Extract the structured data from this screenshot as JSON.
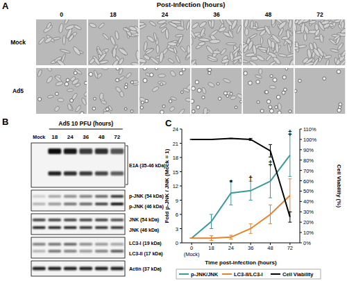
{
  "panels": {
    "A": {
      "label": "A",
      "title": "Post-Infection (hours)",
      "columns": [
        "0",
        "18",
        "24",
        "36",
        "48",
        "72"
      ],
      "rows": [
        "Mock",
        "Ad5"
      ]
    },
    "B": {
      "label": "B",
      "title": "Ad5 10 PFU (hours)",
      "lanes": [
        "Mock",
        "18",
        "24",
        "36",
        "48",
        "72"
      ],
      "blots": [
        {
          "labels": [
            "E1A (35-46 kDa)"
          ]
        },
        {
          "labels": [
            "p-JNK (54 kDa)",
            "p-JNK (46 kDa)"
          ]
        },
        {
          "labels": [
            "JNK (54 kDa)",
            "JNK (46 kDa)"
          ]
        },
        {
          "labels": [
            "LC3-I (19 kDa)",
            "LC3-II (17 kDa)"
          ]
        },
        {
          "labels": [
            "Actin (37 kDa)"
          ]
        }
      ]
    }
  },
  "chart_data": {
    "type": "line",
    "panel_label": "C",
    "x_label": "Time post-infection (hours)",
    "y_label": "Fold p-JNK / JNK (Mock = 1)",
    "y2_label": "Cell Viability (%)",
    "categories": [
      "0 (Mock)",
      "18",
      "24",
      "36",
      "48",
      "72"
    ],
    "series": [
      {
        "name": "p-JNK/JNK",
        "color": "#3d9a9c",
        "values": [
          1,
          4.5,
          10.5,
          11,
          13,
          18.5
        ],
        "errors": [
          0,
          1.5,
          2.5,
          2,
          3.5,
          4.5
        ]
      },
      {
        "name": "LC3-II/LC3-I",
        "color": "#e8802c",
        "values": [
          1,
          1,
          1.2,
          3,
          6,
          10
        ],
        "errors": [
          0,
          0.5,
          0.4,
          1,
          2,
          3.5
        ]
      },
      {
        "name": "Cell Viability",
        "color": "#000000",
        "axis": "y2",
        "values": [
          100,
          100,
          101,
          100,
          89,
          25
        ],
        "errors": [
          0,
          0,
          0,
          1,
          6,
          5
        ]
      }
    ],
    "ylim": [
      0,
      24
    ],
    "yticks": [
      0,
      3,
      6,
      9,
      12,
      15,
      18,
      21,
      24
    ],
    "y2lim": [
      0,
      110
    ],
    "y2ticks": [
      {
        "value": 0,
        "label": "0%"
      },
      {
        "value": 10,
        "label": "10%"
      },
      {
        "value": 20,
        "label": "20%"
      },
      {
        "value": 30,
        "label": "30%"
      },
      {
        "value": 40,
        "label": "40%"
      },
      {
        "value": 50,
        "label": "50%"
      },
      {
        "value": 60,
        "label": "60%"
      },
      {
        "value": 70,
        "label": "70%"
      },
      {
        "value": 80,
        "label": "80%"
      },
      {
        "value": 90,
        "label": "90%"
      },
      {
        "value": 100,
        "label": "100%"
      },
      {
        "value": 110,
        "label": "110%"
      }
    ],
    "grid": false,
    "legend": "bottom",
    "annotations": [
      {
        "text": "*",
        "x": "24",
        "y": 12.8
      },
      {
        "text": "†",
        "x": "36",
        "y": 13.6
      },
      {
        "text": "‡",
        "x": "48",
        "y": 16.8
      },
      {
        "text": "‡",
        "x": "72",
        "y": 23.3
      }
    ]
  }
}
